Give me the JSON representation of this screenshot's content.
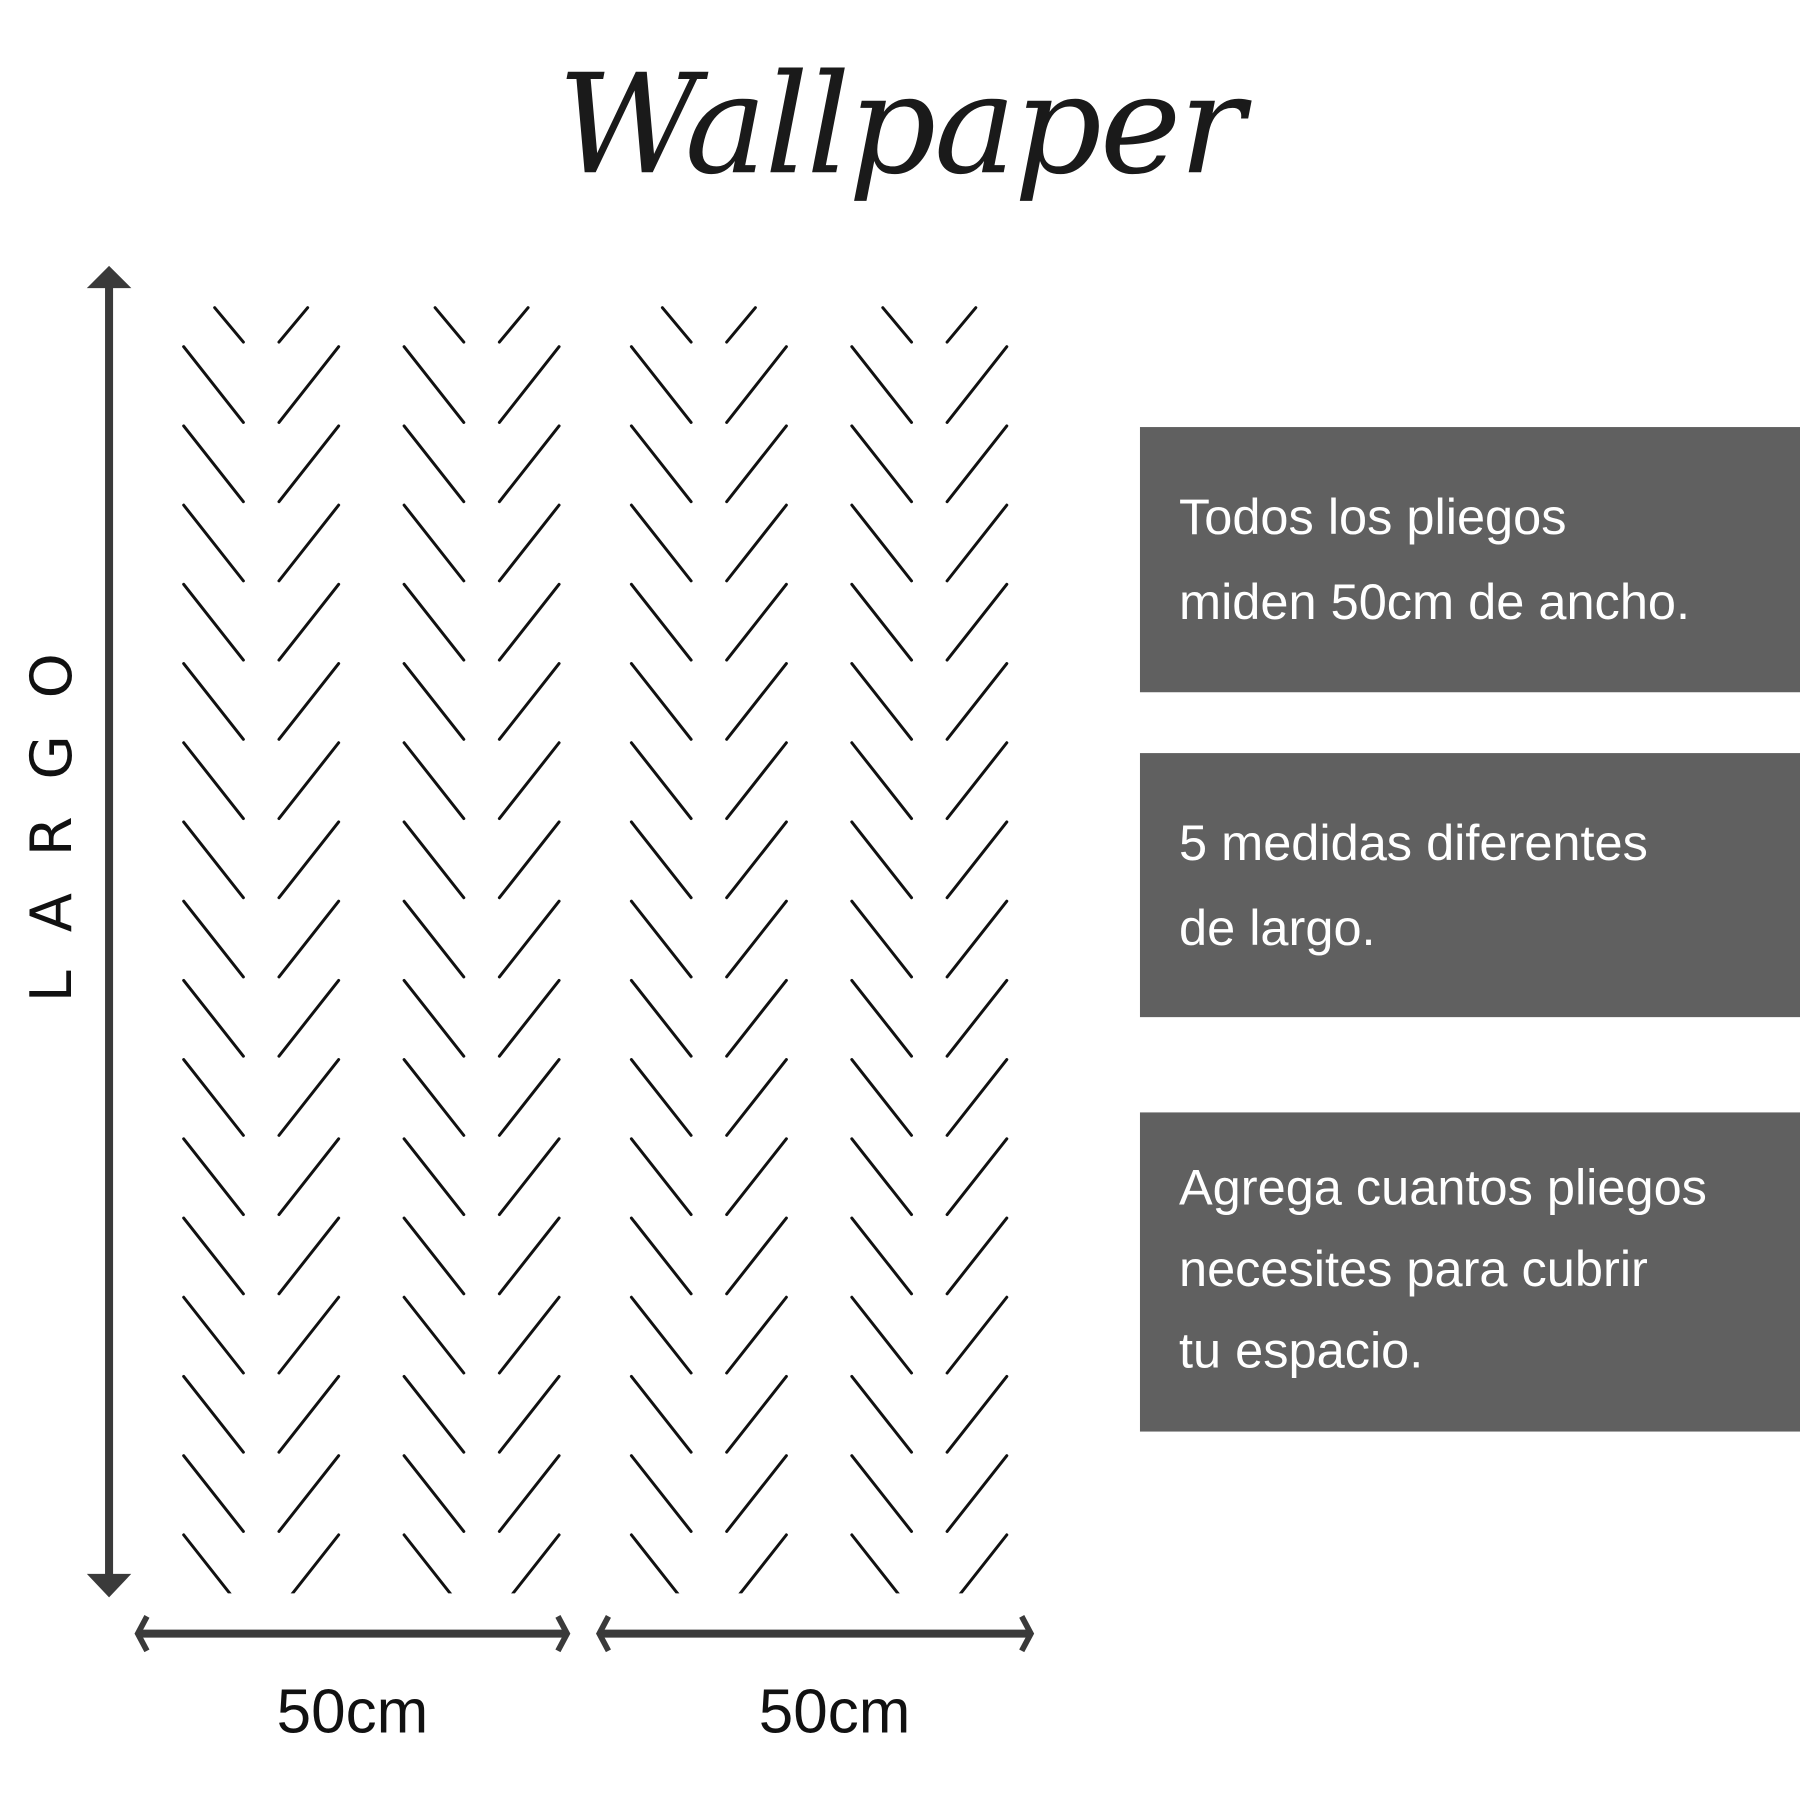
{
  "title": "Wallpaper",
  "height_label": "LARGO",
  "width_labels": [
    "50cm",
    "50cm"
  ],
  "info_boxes": [
    {
      "lines": [
        "Todos los pliegos",
        "miden 50cm de ancho."
      ]
    },
    {
      "lines": [
        "5 medidas diferentes",
        "de largo."
      ]
    },
    {
      "lines": [
        "Agrega cuantos pliegos",
        "necesites para cubrir",
        "tu espacio."
      ]
    }
  ],
  "colors": {
    "box_background": "#606060",
    "box_text": "#ffffff",
    "arrow": "#3a3a3a",
    "pattern": "#111111"
  },
  "pattern": "herringbone chevron, 4 columns"
}
